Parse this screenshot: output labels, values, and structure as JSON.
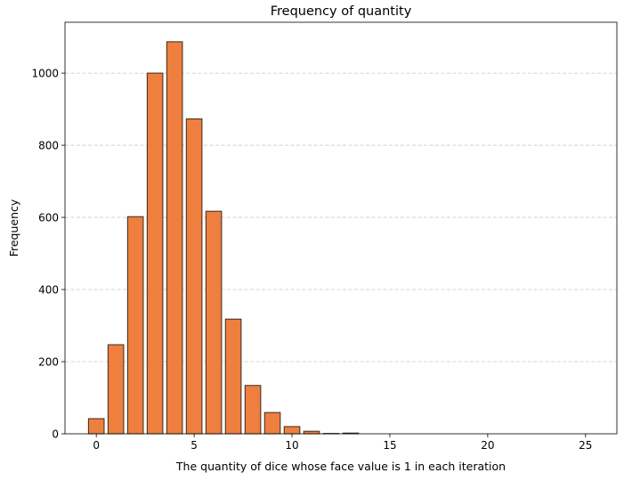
{
  "chart_data": {
    "type": "bar",
    "title": "Frequency of quantity",
    "xlabel": "The quantity of dice whose face value is 1 in each iteration",
    "ylabel": "Frequency",
    "x": [
      0,
      1,
      2,
      3,
      4,
      5,
      6,
      7,
      8,
      9,
      10,
      11,
      12,
      13,
      14,
      15,
      16,
      17,
      18,
      19,
      20,
      21,
      22,
      23,
      24,
      25
    ],
    "values": [
      42,
      247,
      602,
      1000,
      1087,
      873,
      617,
      318,
      134,
      59,
      20,
      7,
      1,
      2,
      0,
      0,
      0,
      0,
      0,
      0,
      0,
      0,
      0,
      0,
      0,
      0
    ],
    "xlim": [
      -1.6,
      26.6
    ],
    "ylim": [
      0,
      1141
    ],
    "xticks": [
      0,
      5,
      10,
      15,
      20,
      25
    ],
    "yticks": [
      0,
      200,
      400,
      600,
      800,
      1000
    ],
    "grid": "y-dashed",
    "colors": {
      "bar_fill": "#ee7f3f",
      "bar_edge": "#3a2a20",
      "grid": "#c8c8c8",
      "axis": "#000000"
    }
  }
}
